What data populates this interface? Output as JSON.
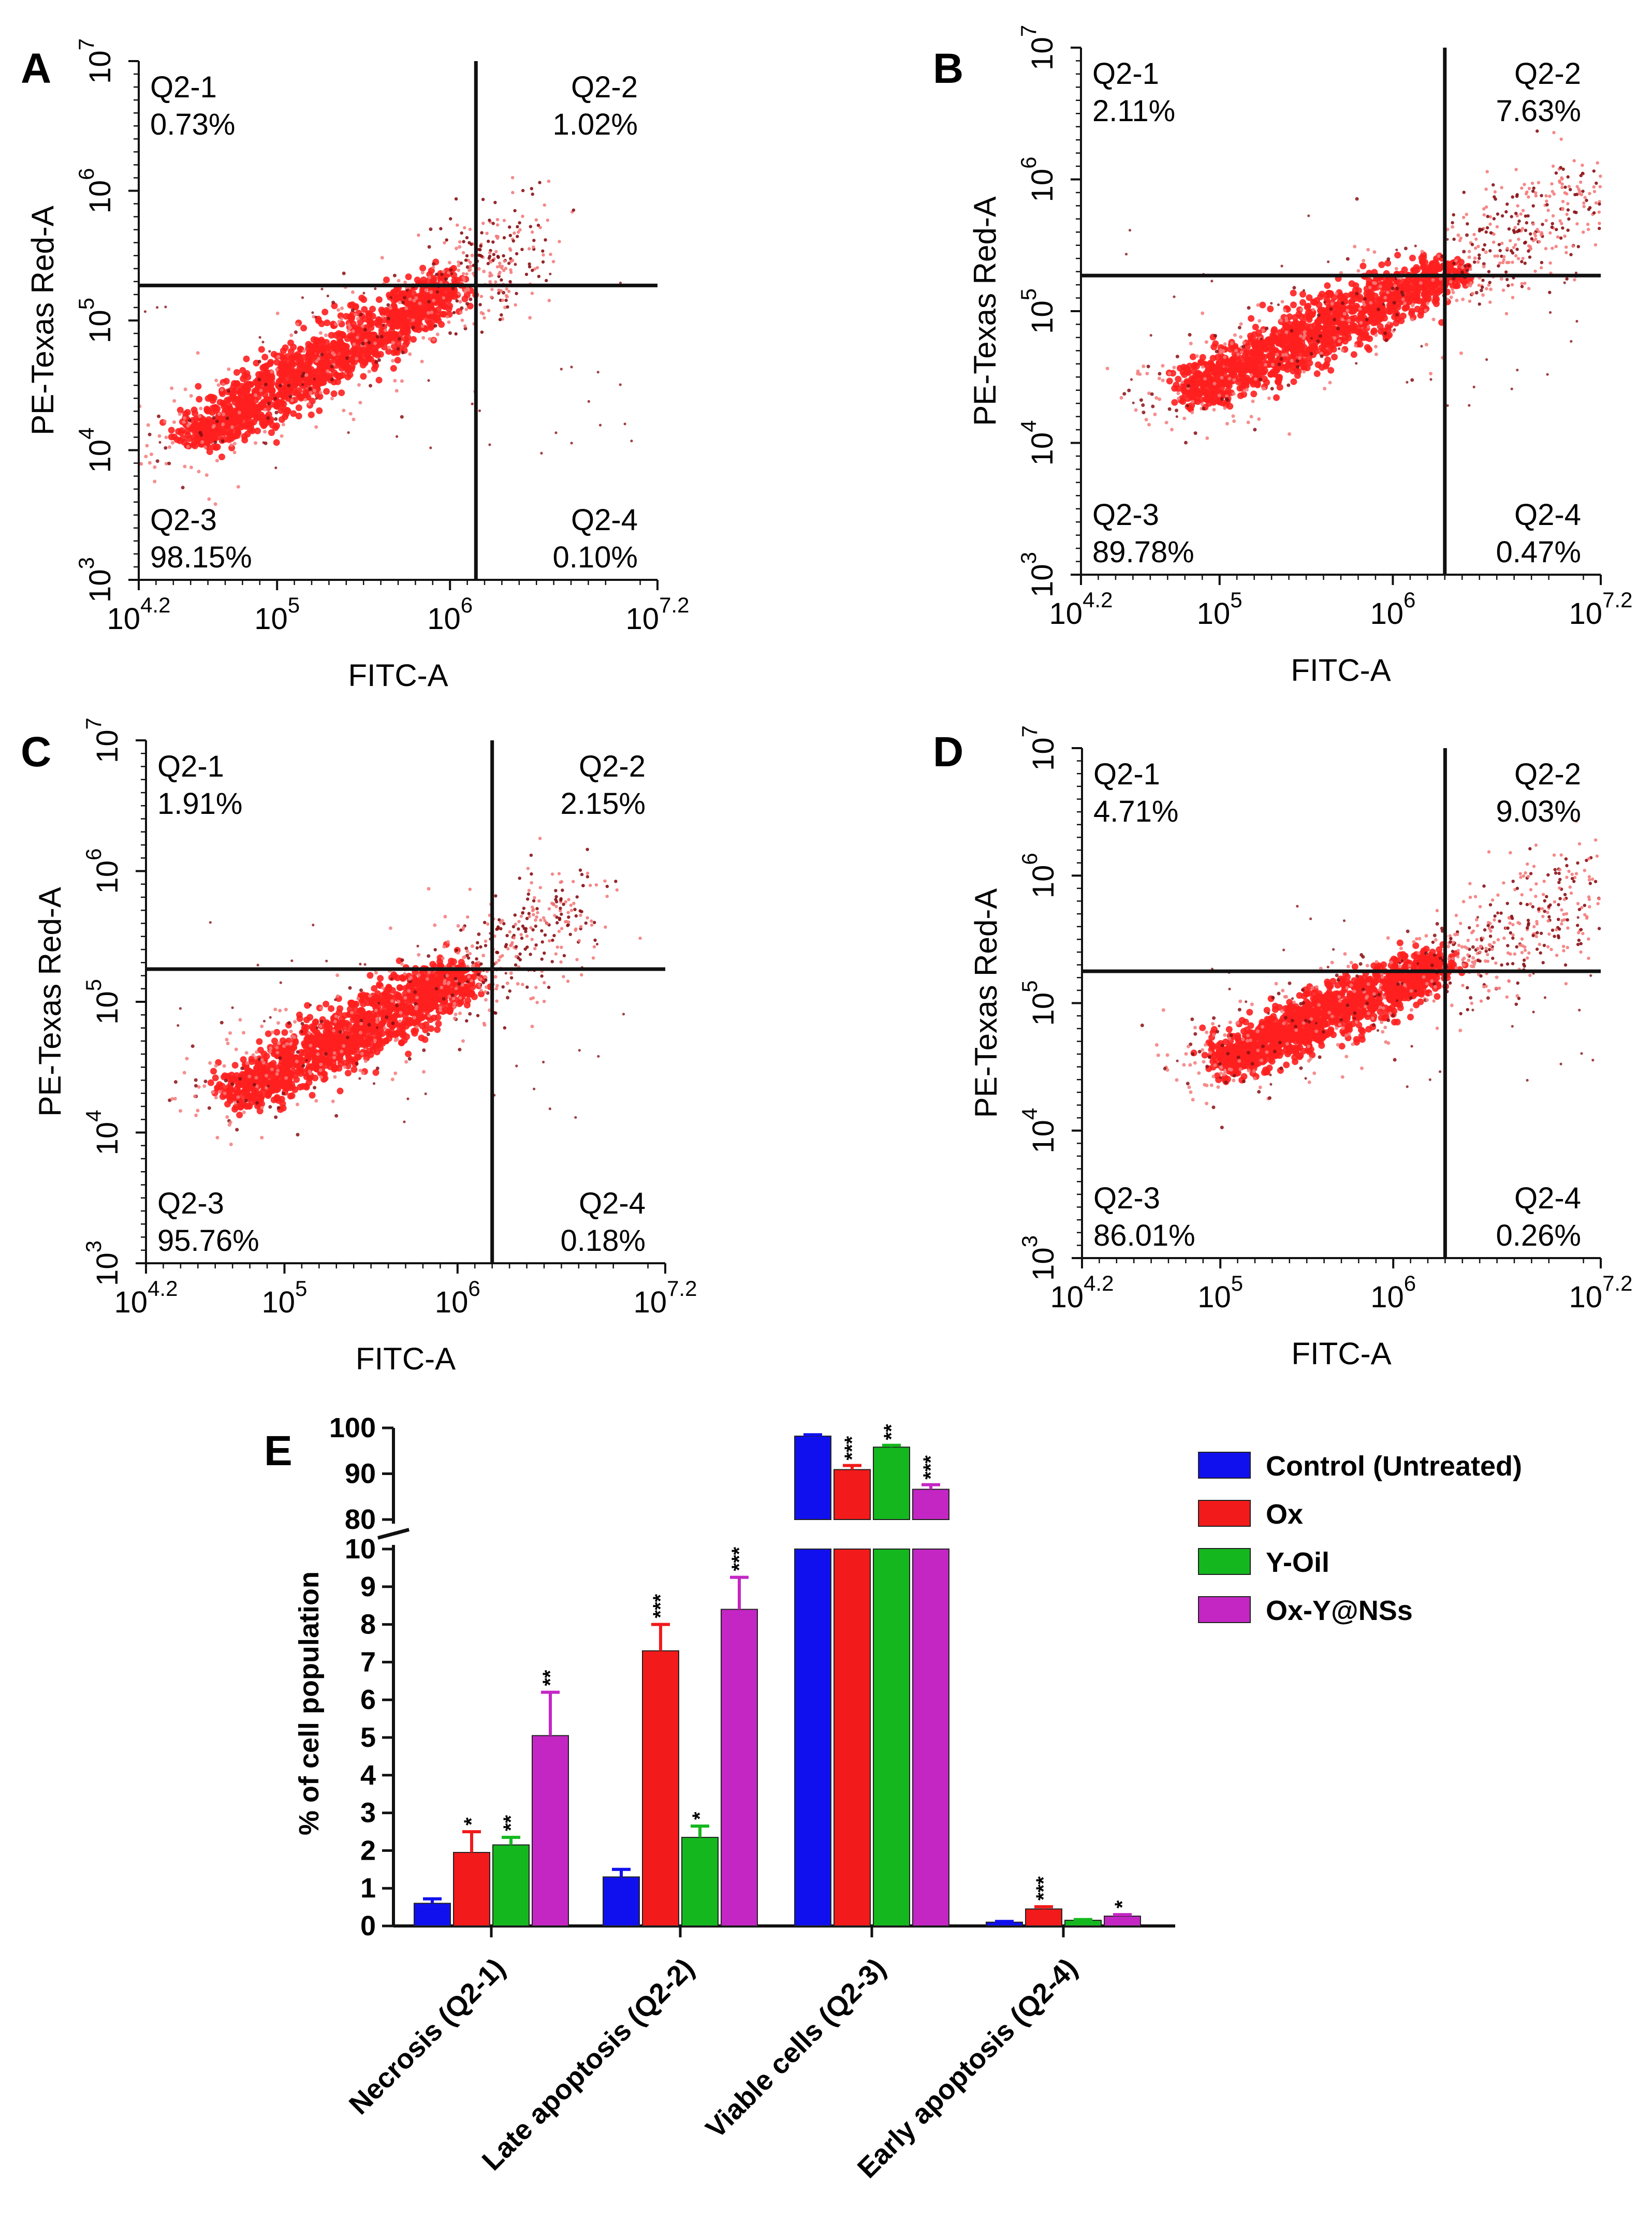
{
  "colors": {
    "axis": "#111111",
    "gate": "#111111",
    "dot_main": "#ff1f1f",
    "dot_light": "#f47b7b",
    "dot_dark": "#8a0f14",
    "control": "#1010ee",
    "ox": "#f21a1a",
    "yoil": "#14b81e",
    "oxy": "#c426c4"
  },
  "chart_data": [
    {
      "type": "scatter",
      "panel_label": "A",
      "xlabel": "FITC-A",
      "ylabel": "PE-Texas Red-A",
      "x_ticks": [
        {
          "base": "10",
          "exp": "4.2"
        },
        {
          "base": "10",
          "exp": "5"
        },
        {
          "base": "10",
          "exp": "6"
        },
        {
          "base": "10",
          "exp": "7.2"
        }
      ],
      "y_ticks": [
        {
          "base": "10",
          "exp": "3"
        },
        {
          "base": "10",
          "exp": "4"
        },
        {
          "base": "10",
          "exp": "5"
        },
        {
          "base": "10",
          "exp": "6"
        },
        {
          "base": "10",
          "exp": "7"
        }
      ],
      "xlim": [
        4.2,
        7.2
      ],
      "ylim": [
        3,
        7
      ],
      "gate": {
        "x": 6.15,
        "y": 5.27
      },
      "quadrants": {
        "q1": {
          "name": "Q2-1",
          "value": "0.73%"
        },
        "q2": {
          "name": "Q2-2",
          "value": "1.02%"
        },
        "q3": {
          "name": "Q2-3",
          "value": "98.15%"
        },
        "q4": {
          "name": "Q2-4",
          "value": "0.10%"
        }
      },
      "population": {
        "start": [
          4.45,
          4.05
        ],
        "end": [
          6.05,
          5.3
        ],
        "spread": 0.3,
        "tail": 0.55
      }
    },
    {
      "type": "scatter",
      "panel_label": "B",
      "xlabel": "FITC-A",
      "ylabel": "PE-Texas Red-A",
      "x_ticks": [
        {
          "base": "10",
          "exp": "4.2"
        },
        {
          "base": "10",
          "exp": "5"
        },
        {
          "base": "10",
          "exp": "6"
        },
        {
          "base": "10",
          "exp": "7.2"
        }
      ],
      "y_ticks": [
        {
          "base": "10",
          "exp": "3"
        },
        {
          "base": "10",
          "exp": "4"
        },
        {
          "base": "10",
          "exp": "5"
        },
        {
          "base": "10",
          "exp": "6"
        },
        {
          "base": "10",
          "exp": "7"
        }
      ],
      "xlim": [
        4.2,
        7.2
      ],
      "ylim": [
        3,
        7
      ],
      "gate": {
        "x": 6.3,
        "y": 5.27
      },
      "quadrants": {
        "q1": {
          "name": "Q2-1",
          "value": "2.11%"
        },
        "q2": {
          "name": "Q2-2",
          "value": "7.63%"
        },
        "q3": {
          "name": "Q2-3",
          "value": "89.78%"
        },
        "q4": {
          "name": "Q2-4",
          "value": "0.47%"
        }
      },
      "population": {
        "start": [
          4.75,
          4.35
        ],
        "end": [
          6.4,
          5.35
        ],
        "spread": 0.3,
        "tail": 1.1
      }
    },
    {
      "type": "scatter",
      "panel_label": "C",
      "xlabel": "FITC-A",
      "ylabel": "PE-Texas Red-A",
      "x_ticks": [
        {
          "base": "10",
          "exp": "4.2"
        },
        {
          "base": "10",
          "exp": "5"
        },
        {
          "base": "10",
          "exp": "6"
        },
        {
          "base": "10",
          "exp": "7.2"
        }
      ],
      "y_ticks": [
        {
          "base": "10",
          "exp": "3"
        },
        {
          "base": "10",
          "exp": "4"
        },
        {
          "base": "10",
          "exp": "5"
        },
        {
          "base": "10",
          "exp": "6"
        },
        {
          "base": "10",
          "exp": "7"
        }
      ],
      "xlim": [
        4.2,
        7.2
      ],
      "ylim": [
        3,
        7
      ],
      "gate": {
        "x": 6.2,
        "y": 5.25
      },
      "quadrants": {
        "q1": {
          "name": "Q2-1",
          "value": "1.91%"
        },
        "q2": {
          "name": "Q2-2",
          "value": "2.15%"
        },
        "q3": {
          "name": "Q2-3",
          "value": "95.76%"
        },
        "q4": {
          "name": "Q2-4",
          "value": "0.18%"
        }
      },
      "population": {
        "start": [
          4.65,
          4.25
        ],
        "end": [
          6.1,
          5.25
        ],
        "spread": 0.3,
        "tail": 0.85
      }
    },
    {
      "type": "scatter",
      "panel_label": "D",
      "xlabel": "FITC-A",
      "ylabel": "PE-Texas Red-A",
      "x_ticks": [
        {
          "base": "10",
          "exp": "4.2"
        },
        {
          "base": "10",
          "exp": "5"
        },
        {
          "base": "10",
          "exp": "6"
        },
        {
          "base": "10",
          "exp": "7.2"
        }
      ],
      "y_ticks": [
        {
          "base": "10",
          "exp": "3"
        },
        {
          "base": "10",
          "exp": "4"
        },
        {
          "base": "10",
          "exp": "5"
        },
        {
          "base": "10",
          "exp": "6"
        },
        {
          "base": "10",
          "exp": "7"
        }
      ],
      "xlim": [
        4.2,
        7.2
      ],
      "ylim": [
        3,
        7
      ],
      "gate": {
        "x": 6.3,
        "y": 5.25
      },
      "quadrants": {
        "q1": {
          "name": "Q2-1",
          "value": "4.71%"
        },
        "q2": {
          "name": "Q2-2",
          "value": "9.03%"
        },
        "q3": {
          "name": "Q2-3",
          "value": "86.01%"
        },
        "q4": {
          "name": "Q2-4",
          "value": "0.26%"
        }
      },
      "population": {
        "start": [
          4.95,
          4.5
        ],
        "end": [
          6.35,
          5.35
        ],
        "spread": 0.28,
        "tail": 1.1
      }
    },
    {
      "type": "bar",
      "panel_label": "E",
      "ylabel": "% of cell population",
      "categories": [
        "Necrosis (Q2-1)",
        "Late apoptosis (Q2-2)",
        "Viable cells (Q2-3)",
        "Early apoptosis (Q2-4)"
      ],
      "series": [
        {
          "name": "Control (Untreated)",
          "color_key": "control",
          "values": [
            0.6,
            1.3,
            98.2,
            0.1
          ],
          "errors": [
            0.12,
            0.2,
            0.3,
            0.02
          ],
          "sig": [
            "",
            "",
            "",
            ""
          ]
        },
        {
          "name": "Ox",
          "color_key": "ox",
          "values": [
            1.95,
            7.3,
            90.9,
            0.45
          ],
          "errors": [
            0.55,
            0.7,
            0.9,
            0.06
          ],
          "sig": [
            "*",
            "***",
            "***",
            "***"
          ]
        },
        {
          "name": "Y-Oil",
          "color_key": "yoil",
          "values": [
            2.15,
            2.35,
            95.8,
            0.15
          ],
          "errors": [
            0.2,
            0.3,
            0.4,
            0.02
          ],
          "sig": [
            "**",
            "*",
            "**",
            ""
          ]
        },
        {
          "name": "Ox-Y@NSs",
          "color_key": "oxy",
          "values": [
            5.05,
            8.4,
            86.6,
            0.26
          ],
          "errors": [
            1.15,
            0.85,
            1.0,
            0.04
          ],
          "sig": [
            "**",
            "***",
            "***",
            "*"
          ]
        }
      ],
      "ylim_lower": [
        0,
        10
      ],
      "ylim_upper": [
        80,
        100
      ],
      "y_ticks_lower": [
        "0",
        "1",
        "2",
        "3",
        "4",
        "5",
        "6",
        "7",
        "8",
        "9",
        "10"
      ],
      "y_ticks_upper": [
        "80",
        "90",
        "100"
      ]
    }
  ]
}
